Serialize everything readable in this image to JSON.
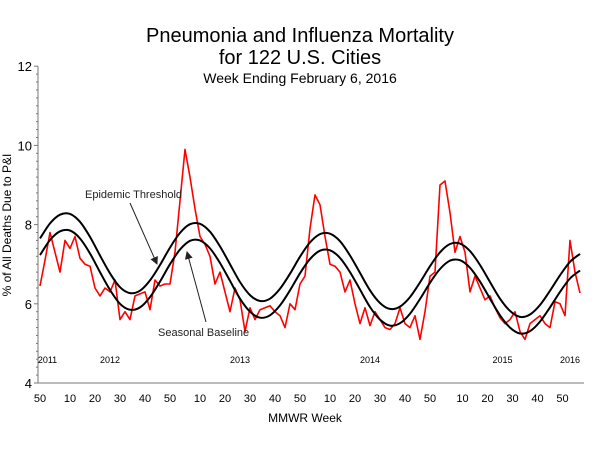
{
  "chart_data": {
    "type": "line",
    "title": "Pneumonia and Influenza Mortality",
    "title_line2": "for 122 U.S. Cities",
    "subtitle": "Week Ending February 6, 2016",
    "xlabel": "MMWR Week",
    "ylabel": "% of All Deaths Due to P&I",
    "ylim": [
      4,
      12
    ],
    "y_ticks": [
      "4",
      "6",
      "8",
      "10",
      "12"
    ],
    "x_ticks": [
      {
        "week": "2011-50",
        "label": "50"
      },
      {
        "week": "2012-10",
        "label": "10"
      },
      {
        "week": "2012-20",
        "label": "20"
      },
      {
        "week": "2012-30",
        "label": "30"
      },
      {
        "week": "2012-40",
        "label": "40"
      },
      {
        "week": "2012-50",
        "label": "50"
      },
      {
        "week": "2013-10",
        "label": "10"
      },
      {
        "week": "2013-20",
        "label": "20"
      },
      {
        "week": "2013-30",
        "label": "30"
      },
      {
        "week": "2013-40",
        "label": "40"
      },
      {
        "week": "2013-50",
        "label": "50"
      },
      {
        "week": "2014-10",
        "label": "10"
      },
      {
        "week": "2014-20",
        "label": "20"
      },
      {
        "week": "2014-30",
        "label": "30"
      },
      {
        "week": "2014-40",
        "label": "40"
      },
      {
        "week": "2014-50",
        "label": "50"
      },
      {
        "week": "2015-10",
        "label": "10"
      },
      {
        "week": "2015-20",
        "label": "20"
      },
      {
        "week": "2015-30",
        "label": "30"
      },
      {
        "week": "2015-40",
        "label": "40"
      },
      {
        "week": "2015-50",
        "label": "50"
      }
    ],
    "year_labels": [
      "2011",
      "2012",
      "2013",
      "2014",
      "2015",
      "2016"
    ],
    "grid": false,
    "annotations": {
      "epidemic_threshold": "Epidemic Threshold",
      "seasonal_baseline": "Seasonal Baseline"
    },
    "colors": {
      "observed": "#ff0000",
      "curves": "#000000"
    },
    "series": [
      {
        "id": "observed",
        "x": [
          "2011-50",
          "2011-52",
          "2012-02",
          "2012-04",
          "2012-06",
          "2012-08",
          "2012-10",
          "2012-12",
          "2012-14",
          "2012-16",
          "2012-18",
          "2012-20",
          "2012-22",
          "2012-24",
          "2012-26",
          "2012-28",
          "2012-30",
          "2012-32",
          "2012-34",
          "2012-36",
          "2012-38",
          "2012-40",
          "2012-42",
          "2012-44",
          "2012-46",
          "2012-48",
          "2012-50",
          "2012-52",
          "2013-02",
          "2013-04",
          "2013-06",
          "2013-08",
          "2013-10",
          "2013-12",
          "2013-14",
          "2013-16",
          "2013-18",
          "2013-20",
          "2013-22",
          "2013-24",
          "2013-26",
          "2013-28",
          "2013-30",
          "2013-32",
          "2013-34",
          "2013-36",
          "2013-38",
          "2013-40",
          "2013-42",
          "2013-44",
          "2013-46",
          "2013-48",
          "2013-50",
          "2013-52",
          "2014-02",
          "2014-04",
          "2014-06",
          "2014-08",
          "2014-10",
          "2014-12",
          "2014-14",
          "2014-16",
          "2014-18",
          "2014-20",
          "2014-22",
          "2014-24",
          "2014-26",
          "2014-28",
          "2014-30",
          "2014-32",
          "2014-34",
          "2014-36",
          "2014-38",
          "2014-40",
          "2014-42",
          "2014-44",
          "2014-46",
          "2014-48",
          "2014-50",
          "2014-52",
          "2015-01",
          "2015-03",
          "2015-05",
          "2015-07",
          "2015-09",
          "2015-11",
          "2015-13",
          "2015-15",
          "2015-17",
          "2015-19",
          "2015-21",
          "2015-23",
          "2015-25",
          "2015-27",
          "2015-29",
          "2015-31",
          "2015-33",
          "2015-35",
          "2015-37",
          "2015-39",
          "2015-41",
          "2015-43",
          "2015-45",
          "2015-47",
          "2015-49",
          "2015-51",
          "2016-01",
          "2016-03",
          "2016-05"
        ],
        "y": [
          6.45,
          7.1,
          7.8,
          7.3,
          6.8,
          7.6,
          7.4,
          7.7,
          7.15,
          7.0,
          6.95,
          6.4,
          6.2,
          6.4,
          6.3,
          6.6,
          5.6,
          5.8,
          5.6,
          6.2,
          6.25,
          6.3,
          5.85,
          6.6,
          6.45,
          6.5,
          6.5,
          7.3,
          8.6,
          9.9,
          9.2,
          8.4,
          7.7,
          7.5,
          7.2,
          6.5,
          6.8,
          6.3,
          5.8,
          6.4,
          6.1,
          5.3,
          5.9,
          5.6,
          5.85,
          5.9,
          5.95,
          5.8,
          5.7,
          5.4,
          6.0,
          5.85,
          6.5,
          6.7,
          7.9,
          8.75,
          8.5,
          7.7,
          7.0,
          6.95,
          6.8,
          6.3,
          6.6,
          6.0,
          5.5,
          5.9,
          5.45,
          5.8,
          5.6,
          5.4,
          5.35,
          5.5,
          5.9,
          5.5,
          5.4,
          5.7,
          5.1,
          5.8,
          6.7,
          6.8,
          9.0,
          9.1,
          8.3,
          7.3,
          7.7,
          7.3,
          6.3,
          6.7,
          6.4,
          6.1,
          6.2,
          5.9,
          5.65,
          5.5,
          5.6,
          5.8,
          5.3,
          5.1,
          5.5,
          5.6,
          5.7,
          5.5,
          5.4,
          6.05,
          6.0,
          5.7,
          7.6,
          6.8,
          6.27
        ]
      },
      {
        "id": "seasonal_baseline",
        "name": "Seasonal Baseline",
        "x": [
          "2011-50",
          "2012-02",
          "2012-06",
          "2012-10",
          "2012-14",
          "2012-18",
          "2012-22",
          "2012-26",
          "2012-30",
          "2012-34",
          "2012-38",
          "2012-42",
          "2012-46",
          "2012-50",
          "2013-02",
          "2013-06",
          "2013-10",
          "2013-14",
          "2013-18",
          "2013-22",
          "2013-26",
          "2013-30",
          "2013-34",
          "2013-38",
          "2013-42",
          "2013-46",
          "2013-50",
          "2014-02",
          "2014-06",
          "2014-10",
          "2014-14",
          "2014-18",
          "2014-22",
          "2014-26",
          "2014-30",
          "2014-34",
          "2014-38",
          "2014-42",
          "2014-46",
          "2014-50",
          "2015-01",
          "2015-05",
          "2015-09",
          "2015-13",
          "2015-17",
          "2015-21",
          "2015-25",
          "2015-29",
          "2015-33",
          "2015-37",
          "2015-41",
          "2015-45",
          "2015-49",
          "2016-01",
          "2016-05"
        ],
        "y": [
          7.23,
          7.61,
          7.83,
          7.85,
          7.65,
          7.27,
          6.8,
          6.35,
          6.0,
          5.85,
          5.91,
          6.17,
          6.56,
          7.0,
          7.37,
          7.59,
          7.6,
          7.4,
          7.03,
          6.58,
          6.13,
          5.8,
          5.65,
          5.71,
          5.96,
          6.34,
          6.77,
          7.13,
          7.34,
          7.35,
          7.16,
          6.8,
          6.36,
          5.92,
          5.6,
          5.45,
          5.51,
          5.75,
          6.12,
          6.53,
          6.88,
          7.09,
          7.1,
          6.91,
          6.56,
          6.13,
          5.71,
          5.4,
          5.25,
          5.31,
          5.55,
          5.91,
          6.3,
          6.64,
          6.84
        ]
      },
      {
        "id": "epidemic_threshold",
        "name": "Epidemic Threshold",
        "x": [
          "2011-50",
          "2012-02",
          "2012-06",
          "2012-10",
          "2012-14",
          "2012-18",
          "2012-22",
          "2012-26",
          "2012-30",
          "2012-34",
          "2012-38",
          "2012-42",
          "2012-46",
          "2012-50",
          "2013-02",
          "2013-06",
          "2013-10",
          "2013-14",
          "2013-18",
          "2013-22",
          "2013-26",
          "2013-30",
          "2013-34",
          "2013-38",
          "2013-42",
          "2013-46",
          "2013-50",
          "2014-02",
          "2014-06",
          "2014-10",
          "2014-14",
          "2014-18",
          "2014-22",
          "2014-26",
          "2014-30",
          "2014-34",
          "2014-38",
          "2014-42",
          "2014-46",
          "2014-50",
          "2015-01",
          "2015-05",
          "2015-09",
          "2015-13",
          "2015-17",
          "2015-21",
          "2015-25",
          "2015-29",
          "2015-33",
          "2015-37",
          "2015-41",
          "2015-45",
          "2015-49",
          "2016-01",
          "2016-05"
        ],
        "y": [
          7.65,
          8.03,
          8.25,
          8.27,
          8.07,
          7.69,
          7.22,
          6.77,
          6.42,
          6.27,
          6.33,
          6.59,
          6.98,
          7.42,
          7.79,
          8.01,
          8.02,
          7.82,
          7.45,
          7.0,
          6.55,
          6.22,
          6.07,
          6.13,
          6.38,
          6.76,
          7.19,
          7.55,
          7.76,
          7.77,
          7.58,
          7.22,
          6.78,
          6.34,
          6.02,
          5.87,
          5.93,
          6.17,
          6.54,
          6.95,
          7.3,
          7.51,
          7.52,
          7.33,
          6.98,
          6.55,
          6.13,
          5.82,
          5.67,
          5.73,
          5.97,
          6.33,
          6.72,
          7.06,
          7.26
        ]
      }
    ]
  }
}
